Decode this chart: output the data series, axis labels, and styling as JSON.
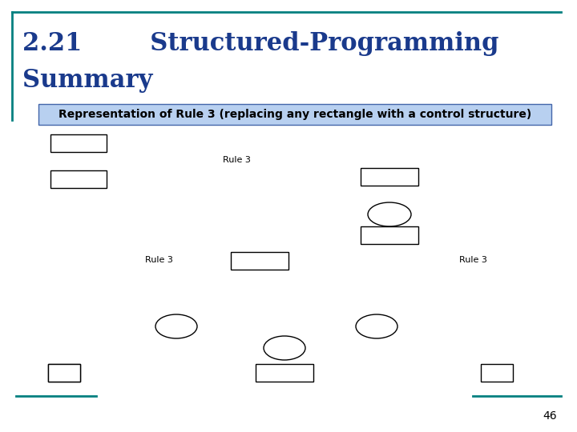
{
  "title_line1": "2.21        Structured-Programming",
  "title_line2": "Summary",
  "title_color": "#1a3a8c",
  "title_fontsize": 22,
  "subtitle": "Representation of Rule 3 (replacing any rectangle with a control structure)",
  "subtitle_bg": "#b8d0f0",
  "subtitle_border": "#4466aa",
  "subtitle_fontsize": 10,
  "bg_color": "#ffffff",
  "border_color_teal": "#008080",
  "rule3_label_color": "#000000",
  "rule3_fontsize": 8,
  "rect_color": "#ffffff",
  "rect_edgecolor": "#000000",
  "ellipse_edgecolor": "#000000",
  "page_number": "46",
  "page_number_fontsize": 10
}
